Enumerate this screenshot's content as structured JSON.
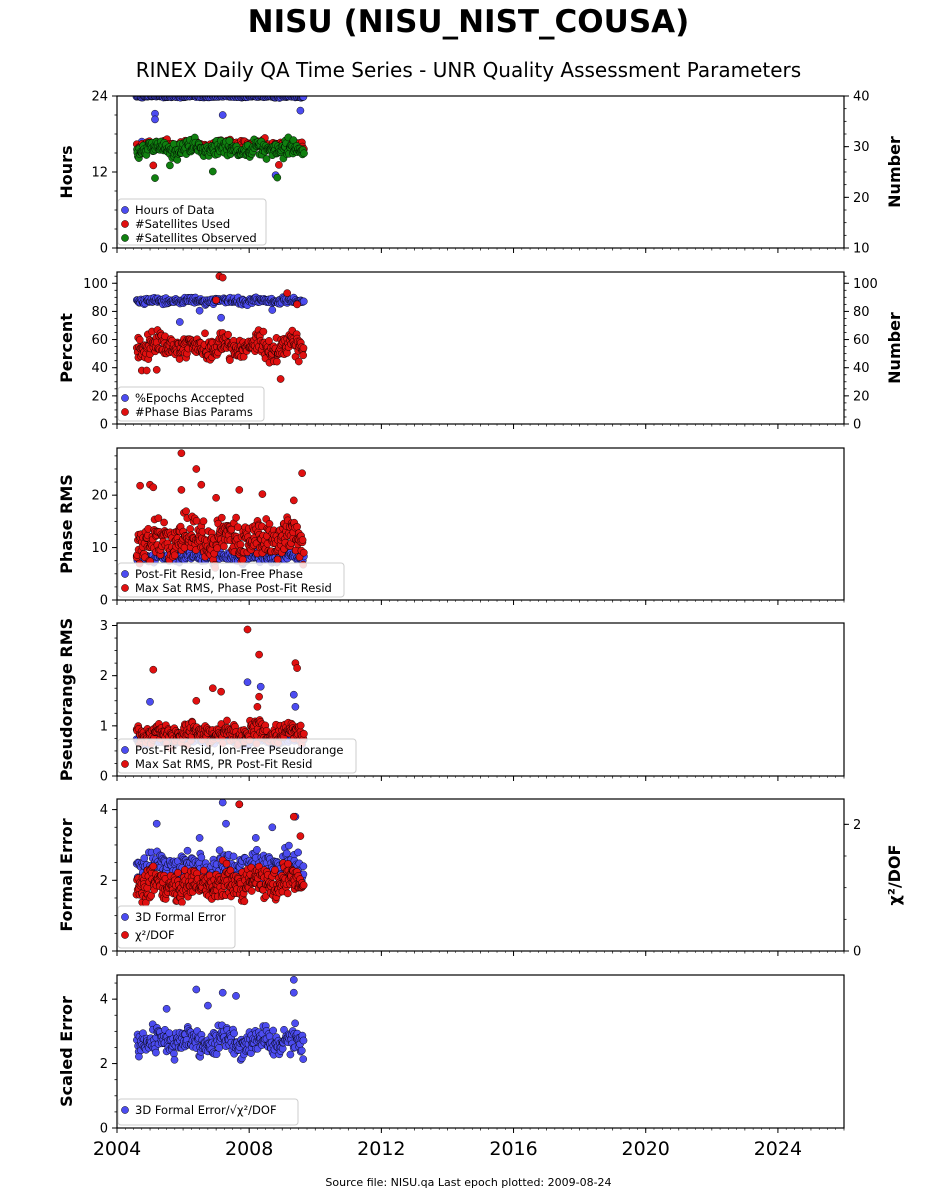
{
  "title": "NISU (NISU_NIST_COUSA)",
  "subtitle": "RINEX Daily QA Time Series - UNR Quality Assessment Parameters",
  "footer": "Source file: NISU.qa Last epoch plotted: 2009-08-24",
  "colors": {
    "blue": "#4c4cf0",
    "red": "#e01010",
    "green": "#108010"
  },
  "chart_data": [
    {
      "type": "scatter",
      "ylabel": "Hours",
      "y2label": "Number",
      "ylim": [
        0,
        24
      ],
      "yticks": [
        0,
        12,
        24
      ],
      "y2lim": [
        10,
        40
      ],
      "y2ticks": [
        10,
        20,
        30,
        40
      ],
      "xlim": [
        2004,
        2026
      ],
      "xticks": [
        2004,
        2008,
        2012,
        2016,
        2020,
        2024
      ],
      "legend": "bottom-left",
      "series": [
        {
          "name": "Hours of Data",
          "color": "blue",
          "axis": "left",
          "x_start": 2004.6,
          "x_end": 2009.65,
          "base": 23.9,
          "spread": 0.15,
          "count": 200,
          "outliers": [
            [
              2004.75,
              16.8
            ],
            [
              2005.15,
              21.2
            ],
            [
              2005.15,
              20.3
            ],
            [
              2007.2,
              21.0
            ],
            [
              2009.55,
              21.7
            ],
            [
              2008.8,
              11.5
            ],
            [
              2004.7,
              24.5
            ]
          ]
        },
        {
          "name": "#Satellites Used",
          "color": "red",
          "axis": "right",
          "x_start": 2004.6,
          "x_end": 2009.65,
          "base": 30.5,
          "spread": 0.8,
          "count": 160,
          "outliers": [
            [
              2005.1,
              26.3
            ],
            [
              2008.9,
              26.4
            ]
          ]
        },
        {
          "name": "#Satellites Observed",
          "color": "green",
          "axis": "right",
          "x_start": 2004.6,
          "x_end": 2009.65,
          "base": 29.6,
          "spread": 1.4,
          "count": 260,
          "outliers": [
            [
              2005.15,
              23.8
            ],
            [
              2006.9,
              25.1
            ],
            [
              2008.85,
              23.9
            ],
            [
              2005.6,
              26.3
            ]
          ]
        }
      ]
    },
    {
      "type": "scatter",
      "ylabel": "Percent",
      "y2label": "Number",
      "ylim": [
        0,
        108
      ],
      "yticks": [
        0,
        20,
        40,
        60,
        80,
        100
      ],
      "y2lim": [
        0,
        108
      ],
      "y2ticks": [
        0,
        20,
        40,
        60,
        80,
        100
      ],
      "xlim": [
        2004,
        2026
      ],
      "xticks": [
        2004,
        2008,
        2012,
        2016,
        2020,
        2024
      ],
      "legend": "bottom-left",
      "series": [
        {
          "name": "%Epochs Accepted",
          "color": "blue",
          "axis": "left",
          "x_start": 2004.6,
          "x_end": 2009.65,
          "base": 87.5,
          "spread": 2.0,
          "count": 230,
          "outliers": [
            [
              2005.9,
              72.5
            ],
            [
              2007.15,
              75.5
            ],
            [
              2006.5,
              80.5
            ],
            [
              2008.7,
              81.0
            ]
          ]
        },
        {
          "name": "#Phase Bias Params",
          "color": "red",
          "axis": "right",
          "x_start": 2004.6,
          "x_end": 2009.65,
          "base": 55,
          "spread": 7.5,
          "count": 300,
          "outliers": [
            [
              2007.1,
              105
            ],
            [
              2007.2,
              104
            ],
            [
              2008.95,
              32
            ],
            [
              2004.75,
              38
            ],
            [
              2004.9,
              38
            ],
            [
              2009.15,
              93
            ],
            [
              2007.0,
              88
            ],
            [
              2009.45,
              85
            ],
            [
              2005.2,
              38.5
            ]
          ]
        }
      ]
    },
    {
      "type": "scatter",
      "ylabel": "Phase RMS",
      "ylim": [
        0,
        29
      ],
      "yticks": [
        0,
        10,
        20
      ],
      "xlim": [
        2004,
        2026
      ],
      "xticks": [
        2004,
        2008,
        2012,
        2016,
        2020,
        2024
      ],
      "legend": "bottom-left",
      "series": [
        {
          "name": "Post-Fit Resid, Ion-Free Phase",
          "color": "blue",
          "axis": "left",
          "x_start": 2004.6,
          "x_end": 2009.65,
          "base": 8.2,
          "spread": 0.8,
          "count": 230,
          "outliers": []
        },
        {
          "name": "Max Sat RMS, Phase Post-Fit Resid",
          "color": "red",
          "axis": "left",
          "x_start": 2004.6,
          "x_end": 2009.65,
          "base": 11.5,
          "spread": 3.2,
          "count": 330,
          "outliers": [
            [
              2005.95,
              28.0
            ],
            [
              2006.4,
              25.0
            ],
            [
              2009.6,
              24.2
            ],
            [
              2005.0,
              22.0
            ],
            [
              2005.1,
              21.5
            ],
            [
              2004.7,
              21.8
            ],
            [
              2006.55,
              22.0
            ],
            [
              2005.95,
              21.0
            ],
            [
              2007.7,
              21.0
            ],
            [
              2008.4,
              20.2
            ],
            [
              2009.35,
              19.0
            ],
            [
              2007.0,
              19.5
            ]
          ]
        }
      ]
    },
    {
      "type": "scatter",
      "ylabel": "Pseudorange RMS",
      "ylim": [
        0,
        3.05
      ],
      "yticks": [
        0,
        1,
        2,
        3
      ],
      "xlim": [
        2004,
        2026
      ],
      "xticks": [
        2004,
        2008,
        2012,
        2016,
        2020,
        2024
      ],
      "legend": "bottom-left",
      "series": [
        {
          "name": "Post-Fit Resid, Ion-Free Pseudorange",
          "color": "blue",
          "axis": "left",
          "x_start": 2004.6,
          "x_end": 2009.65,
          "base": 0.72,
          "spread": 0.08,
          "count": 200,
          "outliers": [
            [
              2005.0,
              1.48
            ],
            [
              2007.95,
              1.87
            ],
            [
              2008.35,
              1.78
            ],
            [
              2009.35,
              1.62
            ],
            [
              2009.4,
              1.38
            ]
          ]
        },
        {
          "name": "Max Sat RMS, PR Post-Fit Resid",
          "color": "red",
          "axis": "left",
          "x_start": 2004.6,
          "x_end": 2009.65,
          "base": 0.85,
          "spread": 0.18,
          "count": 300,
          "outliers": [
            [
              2007.95,
              2.92
            ],
            [
              2008.3,
              2.42
            ],
            [
              2009.4,
              2.25
            ],
            [
              2009.45,
              2.15
            ],
            [
              2005.1,
              2.12
            ],
            [
              2006.9,
              1.75
            ],
            [
              2007.15,
              1.68
            ],
            [
              2008.3,
              1.58
            ],
            [
              2006.4,
              1.5
            ],
            [
              2008.25,
              1.38
            ]
          ]
        }
      ]
    },
    {
      "type": "scatter",
      "ylabel": "Formal Error",
      "y2label": "χ²/DOF",
      "ylim": [
        0,
        4.3
      ],
      "yticks": [
        0,
        2,
        4
      ],
      "y2lim": [
        0,
        2.4
      ],
      "y2ticks": [
        0,
        2
      ],
      "xlim": [
        2004,
        2026
      ],
      "xticks": [
        2004,
        2008,
        2012,
        2016,
        2020,
        2024
      ],
      "legend": "bottom-left",
      "series": [
        {
          "name": "3D Formal Error",
          "color": "blue",
          "axis": "left",
          "x_start": 2004.6,
          "x_end": 2009.65,
          "base": 2.4,
          "spread": 0.35,
          "count": 260,
          "outliers": [
            [
              2007.2,
              4.2
            ],
            [
              2007.7,
              4.15
            ],
            [
              2005.2,
              3.6
            ],
            [
              2007.3,
              3.6
            ],
            [
              2008.7,
              3.5
            ],
            [
              2009.4,
              3.8
            ],
            [
              2006.5,
              3.2
            ],
            [
              2008.2,
              3.2
            ]
          ]
        },
        {
          "name": "χ²/DOF",
          "color": "red",
          "axis": "left",
          "x_start": 2004.6,
          "x_end": 2009.65,
          "base": 1.9,
          "spread": 0.38,
          "count": 340,
          "outliers": [
            [
              2007.7,
              4.15
            ],
            [
              2009.35,
              3.8
            ],
            [
              2009.55,
              3.25
            ]
          ]
        }
      ]
    },
    {
      "type": "scatter",
      "ylabel": "Scaled Error",
      "ylim": [
        0,
        4.75
      ],
      "yticks": [
        0,
        2,
        4
      ],
      "xlim": [
        2004,
        2026
      ],
      "xticks": [
        2004,
        2008,
        2012,
        2016,
        2020,
        2024
      ],
      "legend": "bottom-left",
      "series": [
        {
          "name": "3D Formal Error/√χ²/DOF",
          "color": "blue",
          "axis": "left",
          "x_start": 2004.6,
          "x_end": 2009.65,
          "base": 2.7,
          "spread": 0.38,
          "count": 300,
          "outliers": [
            [
              2009.35,
              4.6
            ],
            [
              2009.35,
              4.2
            ],
            [
              2006.4,
              4.3
            ],
            [
              2007.2,
              4.2
            ],
            [
              2007.6,
              4.1
            ],
            [
              2006.75,
              3.8
            ],
            [
              2005.5,
              3.7
            ]
          ]
        }
      ]
    }
  ]
}
